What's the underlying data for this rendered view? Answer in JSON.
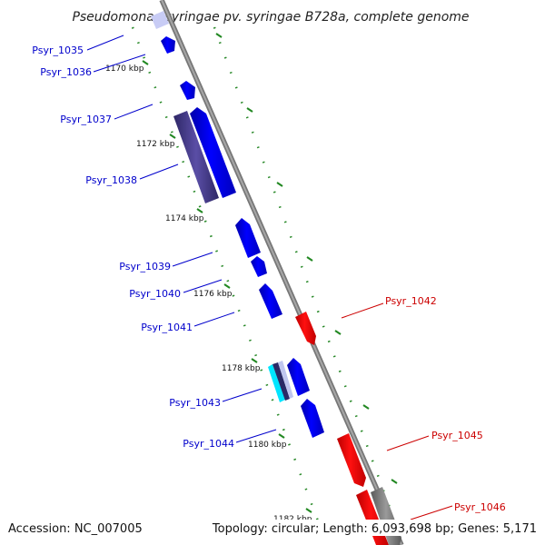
{
  "title": "Pseudomonas syringae pv. syringae B728a, complete genome",
  "footer": {
    "accession": "Accession: NC_007005",
    "summary": "Topology: circular; Length: 6,093,698 bp; Genes: 5,171"
  },
  "kbp_labels": [
    "1170 kbp",
    "1172 kbp",
    "1174 kbp",
    "1176 kbp",
    "1178 kbp",
    "1180 kbp",
    "1182 kbp"
  ],
  "genes": [
    {
      "name": "Psyr_1035",
      "strand": "-",
      "color": "#0000cc"
    },
    {
      "name": "Psyr_1036",
      "strand": "-",
      "color": "#0000cc"
    },
    {
      "name": "Psyr_1037",
      "strand": "-",
      "color": "#0000cc"
    },
    {
      "name": "Psyr_1038",
      "strand": "-",
      "color": "#0000cc"
    },
    {
      "name": "Psyr_1039",
      "strand": "-",
      "color": "#0000cc"
    },
    {
      "name": "Psyr_1040",
      "strand": "-",
      "color": "#0000cc"
    },
    {
      "name": "Psyr_1041",
      "strand": "-",
      "color": "#0000cc"
    },
    {
      "name": "Psyr_1042",
      "strand": "+",
      "color": "#cc0000"
    },
    {
      "name": "Psyr_1043",
      "strand": "-",
      "color": "#0000cc"
    },
    {
      "name": "Psyr_1044",
      "strand": "-",
      "color": "#0000cc"
    },
    {
      "name": "Psyr_1045",
      "strand": "+",
      "color": "#cc0000"
    },
    {
      "name": "Psyr_1046",
      "strand": "+",
      "color": "#cc0000"
    }
  ],
  "colors": {
    "backbone": "#888888",
    "tick_green": "#228822",
    "gene_blue": "#0000ff",
    "gene_red": "#ff0000",
    "cds_purple": "#4b3f8f",
    "rna_cyan": "#00e5ff",
    "pseudo_gray": "#808080",
    "light_lavender": "#c8ccf5"
  }
}
